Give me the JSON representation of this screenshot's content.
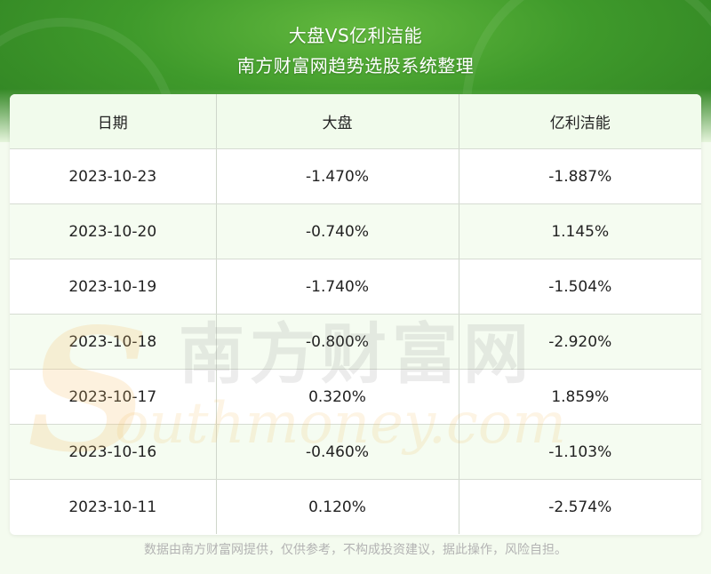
{
  "header": {
    "title": "大盘VS亿利洁能",
    "subtitle": "南方财富网趋势选股系统整理"
  },
  "table": {
    "columns": [
      "日期",
      "大盘",
      "亿利洁能"
    ],
    "rows": [
      [
        "2023-10-23",
        "-1.470%",
        "-1.887%"
      ],
      [
        "2023-10-20",
        "-0.740%",
        "1.145%"
      ],
      [
        "2023-10-19",
        "-1.740%",
        "-1.504%"
      ],
      [
        "2023-10-18",
        "-0.800%",
        "-2.920%"
      ],
      [
        "2023-10-17",
        "0.320%",
        "1.859%"
      ],
      [
        "2023-10-16",
        "-0.460%",
        "-1.103%"
      ],
      [
        "2023-10-11",
        "0.120%",
        "-2.574%"
      ]
    ]
  },
  "watermark": {
    "cn": "南方财富网",
    "en": "outhmoney.com",
    "initial": "S"
  },
  "footer": {
    "disclaimer": "数据由南方财富网提供，仅供参考，不构成投资建议，据此操作，风险自担。"
  },
  "colors": {
    "banner_green": "#3f9a2b",
    "header_row_bg": "#f1fbec",
    "stripe_bg": "#f5fcf1",
    "watermark_gold": "#f4c06a"
  }
}
